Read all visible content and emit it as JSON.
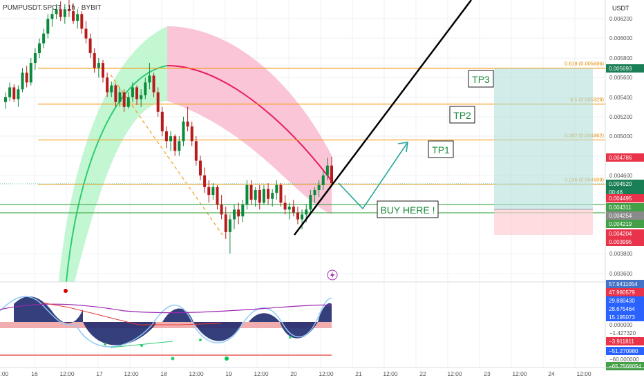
{
  "symbol": "PUMPUSDT.SPOT · 1h · BYBIT",
  "currency": "USDT",
  "icons": {
    "alert": "lightning-icon"
  },
  "colors": {
    "up": "#26a69a",
    "down": "#ef5350",
    "candle_up": "#0a8a3a",
    "candle_down": "#b71c1c",
    "fib": "#f59d1c",
    "support": "#4caf50",
    "trend": "#000000",
    "arrow": "#26a69a",
    "band_green": "#b9f6ca",
    "band_pink": "#f8bbd0",
    "curve_pink": "#e91e63",
    "curve_green": "#2ecc71"
  },
  "annotations": {
    "tp1": "TP1",
    "tp2": "TP2",
    "tp3": "TP3",
    "buy": "BUY HERE !"
  },
  "fib_levels": [
    {
      "label": "0.618 (0.005696)",
      "value": 0.005696
    },
    {
      "label": "0.5 (0.005329)",
      "value": 0.005329
    },
    {
      "label": "0.382 (0.004962)",
      "value": 0.004962
    },
    {
      "label": "0.236 (0.004509)",
      "value": 0.004509
    }
  ],
  "price_axis": {
    "ticks": [
      "0.006200",
      "0.006000",
      "0.005800",
      "0.005600",
      "0.005400",
      "0.005200",
      "0.005000",
      "0.004800",
      "0.004600",
      "0.003800",
      "0.003600"
    ],
    "badges": [
      {
        "text": "0.005693",
        "color": "#1b7f55"
      },
      {
        "text": "0.004786",
        "color": "#e8334a"
      },
      {
        "text": "0.004520",
        "color": "#1b7f55"
      },
      {
        "text": "00:46",
        "color": "#1b7f55"
      },
      {
        "text": "0.004495",
        "color": "#e8334a"
      },
      {
        "text": "0.004311",
        "color": "#43a047"
      },
      {
        "text": "0.004254",
        "color": "#8a8a8a"
      },
      {
        "text": "0.004219",
        "color": "#43a047"
      },
      {
        "text": "0.004204",
        "color": "#e8334a"
      },
      {
        "text": "0.003995",
        "color": "#e8334a"
      }
    ]
  },
  "osc_axis": {
    "ticks": [
      "0.000000",
      "−1.427320",
      "−60.000000"
    ],
    "badges": [
      {
        "text": "57.9411054",
        "color": "#4472c4"
      },
      {
        "text": "47.980579",
        "color": "#e8334a"
      },
      {
        "text": "29.880430",
        "color": "#2962ff"
      },
      {
        "text": "28.675464",
        "color": "#2962ff"
      },
      {
        "text": "15.195073",
        "color": "#2962ff"
      },
      {
        "text": "−3.911811",
        "color": "#e8334a"
      },
      {
        "text": "−51.270980",
        "color": "#2962ff"
      },
      {
        "text": "−65.7568054",
        "color": "#43a047"
      }
    ]
  },
  "time_axis": [
    "2:00",
    "16",
    "12:00",
    "17",
    "12:00",
    "18",
    "12:00",
    "19",
    "12:00",
    "20",
    "12:00",
    "21",
    "12:00",
    "22",
    "12:00",
    "23",
    "12:00",
    "24",
    "12:00"
  ],
  "chart_data": {
    "type": "candlestick",
    "timeframe": "1h",
    "ohlc": [
      [
        0.00535,
        0.00545,
        0.00528,
        0.0054
      ],
      [
        0.0054,
        0.00555,
        0.00536,
        0.0055
      ],
      [
        0.0055,
        0.00553,
        0.00535,
        0.00538
      ],
      [
        0.00538,
        0.00552,
        0.0053,
        0.00548
      ],
      [
        0.00548,
        0.0057,
        0.00545,
        0.00565
      ],
      [
        0.00565,
        0.00572,
        0.0055,
        0.00555
      ],
      [
        0.00555,
        0.0058,
        0.00552,
        0.00575
      ],
      [
        0.00575,
        0.0059,
        0.00568,
        0.00585
      ],
      [
        0.00585,
        0.006,
        0.0058,
        0.00595
      ],
      [
        0.00595,
        0.0061,
        0.0059,
        0.00605
      ],
      [
        0.00605,
        0.00625,
        0.006,
        0.0062
      ],
      [
        0.0062,
        0.0063,
        0.00612,
        0.00625
      ],
      [
        0.00625,
        0.00635,
        0.0062,
        0.0063
      ],
      [
        0.0063,
        0.00638,
        0.00618,
        0.00622
      ],
      [
        0.00622,
        0.00635,
        0.00615,
        0.0063
      ],
      [
        0.0063,
        0.0064,
        0.00622,
        0.00628
      ],
      [
        0.00628,
        0.00636,
        0.00615,
        0.00618
      ],
      [
        0.00618,
        0.0063,
        0.0061,
        0.00625
      ],
      [
        0.00625,
        0.00628,
        0.00605,
        0.0061
      ],
      [
        0.0061,
        0.00618,
        0.00595,
        0.006
      ],
      [
        0.006,
        0.00605,
        0.0058,
        0.00585
      ],
      [
        0.00585,
        0.0059,
        0.00565,
        0.0057
      ],
      [
        0.0057,
        0.0058,
        0.0056,
        0.00575
      ],
      [
        0.00575,
        0.00578,
        0.00555,
        0.0056
      ],
      [
        0.0056,
        0.00565,
        0.0054,
        0.00545
      ],
      [
        0.00545,
        0.00556,
        0.0054,
        0.00552
      ],
      [
        0.00552,
        0.00554,
        0.0053,
        0.00535
      ],
      [
        0.00535,
        0.0055,
        0.0053,
        0.00545
      ],
      [
        0.00545,
        0.00548,
        0.00525,
        0.0053
      ],
      [
        0.0053,
        0.00545,
        0.00528,
        0.0054
      ],
      [
        0.0054,
        0.00555,
        0.00535,
        0.0055
      ],
      [
        0.0055,
        0.00552,
        0.00532,
        0.00538
      ],
      [
        0.00538,
        0.00548,
        0.0053,
        0.00542
      ],
      [
        0.00542,
        0.0056,
        0.00538,
        0.00555
      ],
      [
        0.00555,
        0.00575,
        0.00548,
        0.00562
      ],
      [
        0.00562,
        0.00565,
        0.0054,
        0.00545
      ],
      [
        0.00545,
        0.0055,
        0.0052,
        0.00525
      ],
      [
        0.00525,
        0.0053,
        0.005,
        0.00505
      ],
      [
        0.00505,
        0.0051,
        0.00488,
        0.00495
      ],
      [
        0.00495,
        0.00505,
        0.00485,
        0.005
      ],
      [
        0.005,
        0.00502,
        0.0048,
        0.00485
      ],
      [
        0.00485,
        0.005,
        0.0048,
        0.00495
      ],
      [
        0.00495,
        0.0052,
        0.0049,
        0.00515
      ],
      [
        0.00515,
        0.0053,
        0.00505,
        0.0051
      ],
      [
        0.0051,
        0.00515,
        0.0049,
        0.00495
      ],
      [
        0.00495,
        0.005,
        0.0047,
        0.00475
      ],
      [
        0.00475,
        0.0048,
        0.00455,
        0.0046
      ],
      [
        0.0046,
        0.00468,
        0.00442,
        0.00448
      ],
      [
        0.00448,
        0.00455,
        0.00432,
        0.0044
      ],
      [
        0.0044,
        0.00452,
        0.00435,
        0.00448
      ],
      [
        0.00448,
        0.0045,
        0.00425,
        0.0043
      ],
      [
        0.0043,
        0.0044,
        0.00415,
        0.0042
      ],
      [
        0.0042,
        0.00428,
        0.00395,
        0.00402
      ],
      [
        0.00402,
        0.0042,
        0.0038,
        0.00415
      ],
      [
        0.00415,
        0.0043,
        0.00405,
        0.00425
      ],
      [
        0.00425,
        0.00432,
        0.0041,
        0.00418
      ],
      [
        0.00418,
        0.00435,
        0.00412,
        0.0043
      ],
      [
        0.0043,
        0.00455,
        0.00425,
        0.0045
      ],
      [
        0.0045,
        0.00455,
        0.0043,
        0.00435
      ],
      [
        0.00435,
        0.00448,
        0.00428,
        0.00445
      ],
      [
        0.00445,
        0.0045,
        0.00425,
        0.00432
      ],
      [
        0.00432,
        0.0045,
        0.0043,
        0.00446
      ],
      [
        0.00446,
        0.00452,
        0.0043,
        0.00436
      ],
      [
        0.00436,
        0.00446,
        0.00428,
        0.00442
      ],
      [
        0.00442,
        0.00455,
        0.00435,
        0.0045
      ],
      [
        0.0045,
        0.00452,
        0.00428,
        0.00432
      ],
      [
        0.00432,
        0.0044,
        0.0042,
        0.00425
      ],
      [
        0.00425,
        0.00432,
        0.00415,
        0.00428
      ],
      [
        0.00428,
        0.00435,
        0.00418,
        0.00422
      ],
      [
        0.00422,
        0.00428,
        0.0041,
        0.00415
      ],
      [
        0.00415,
        0.00425,
        0.00405,
        0.0042
      ],
      [
        0.0042,
        0.0043,
        0.00412,
        0.00425
      ],
      [
        0.00425,
        0.00445,
        0.0042,
        0.0044
      ],
      [
        0.0044,
        0.00448,
        0.00432,
        0.00445
      ],
      [
        0.00445,
        0.00455,
        0.00438,
        0.0045
      ],
      [
        0.0045,
        0.00465,
        0.00445,
        0.0046
      ],
      [
        0.0046,
        0.00478,
        0.00455,
        0.0047
      ],
      [
        0.0047,
        0.00479,
        0.00448,
        0.00452
      ]
    ],
    "ylim": [
      0.00353,
      0.0064
    ],
    "grid": true
  }
}
